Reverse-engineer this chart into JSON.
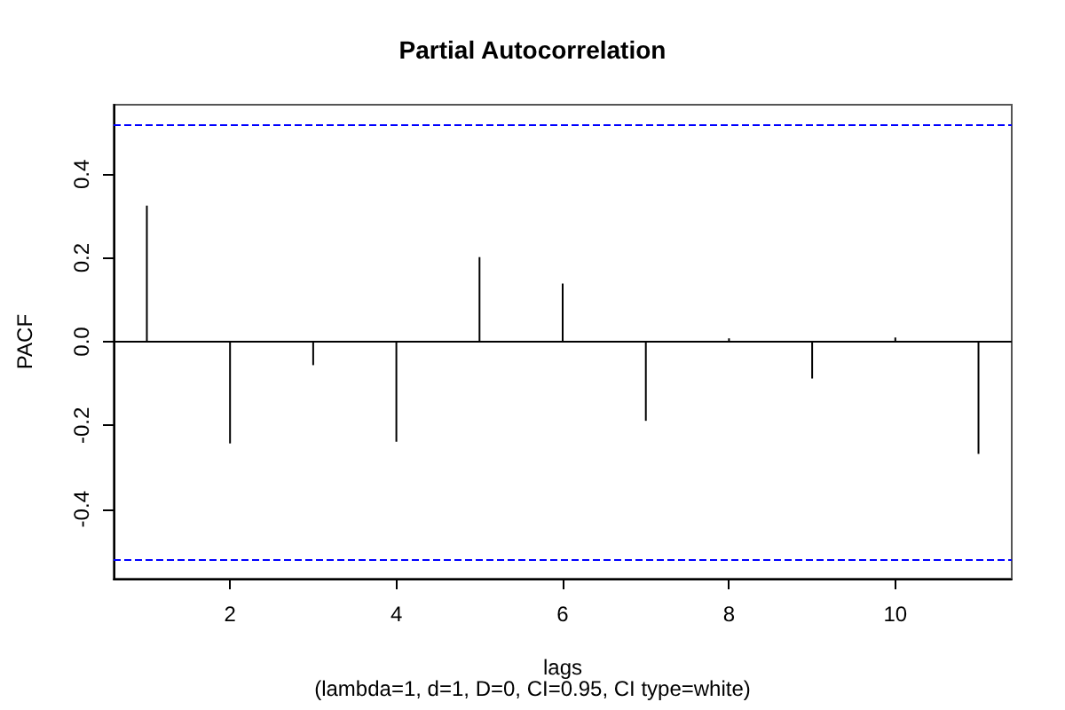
{
  "chart_data": {
    "type": "bar",
    "title": "Partial Autocorrelation",
    "xlabel": "lags",
    "ylabel": "PACF",
    "annotations": [
      "(lambda=1, d=1, D=0, CI=0.95, CI type=white)"
    ],
    "x": [
      1,
      2,
      3,
      4,
      5,
      6,
      7,
      8,
      9,
      10,
      11
    ],
    "values": [
      0.325,
      -0.243,
      -0.056,
      -0.239,
      0.202,
      0.139,
      -0.189,
      0.008,
      -0.088,
      0.01,
      -0.268
    ],
    "color": "#000000",
    "xlim": [
      0.6,
      11.4
    ],
    "xticks": [
      2,
      4,
      6,
      8,
      10
    ],
    "ylim": [
      -0.566,
      0.566
    ],
    "yticks": [
      -0.4,
      -0.2,
      {
        "value": 0,
        "label": "0.0"
      },
      0.2,
      0.4
    ],
    "ref_lines": [
      {
        "axis": "y",
        "value": 0,
        "label": null,
        "color": "#000000",
        "line_style": "solid"
      },
      {
        "axis": "y",
        "value": 0.524,
        "label": null,
        "color": "#0000ff",
        "line_style": "dashed"
      },
      {
        "axis": "y",
        "value": -0.524,
        "label": null,
        "color": "#0000ff",
        "line_style": "dashed"
      }
    ],
    "grid": false
  }
}
